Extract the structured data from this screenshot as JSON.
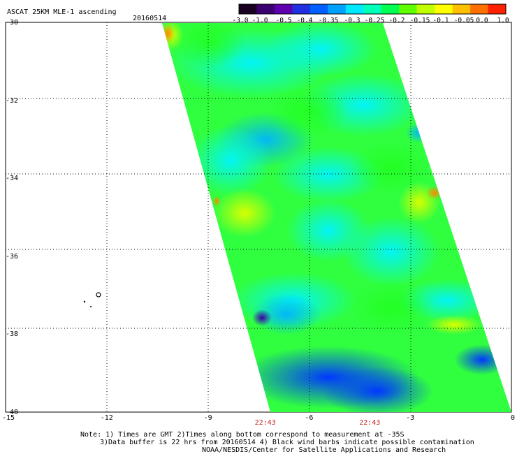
{
  "header": {
    "title": "ASCAT 25KM MLE-1 ascending",
    "date": "20160514"
  },
  "colorbar": {
    "labels": [
      "-3.0",
      "-1.0",
      "-0.5",
      "-0.4",
      "-0.35",
      "-0.3",
      "-0.25",
      "-0.2",
      "-0.15",
      "-0.1",
      "-0.05",
      "0.0",
      "1.0"
    ],
    "colors": [
      "#1a0020",
      "#3a0070",
      "#5c00b0",
      "#2030e0",
      "#0060ff",
      "#00a0ff",
      "#00e8ff",
      "#00ffb8",
      "#00ff50",
      "#60ff00",
      "#c0ff00",
      "#ffff00",
      "#ffc000",
      "#ff7000",
      "#ff2000"
    ]
  },
  "axes": {
    "lat_labels": [
      "-30",
      "-32",
      "-34",
      "-36",
      "-38",
      "-40"
    ],
    "lat_values": [
      -30,
      -32,
      -34,
      -36,
      -38,
      -40
    ],
    "lon_labels": [
      "-15",
      "-12",
      "-9",
      "-6",
      "-3",
      "0"
    ],
    "lon_values": [
      -15,
      -12,
      -9,
      -6,
      -3,
      0
    ],
    "lat_range": [
      -40,
      -30
    ],
    "lon_range": [
      -15,
      0
    ],
    "grid": "dotted"
  },
  "times": [
    {
      "label": "22:43",
      "lon": -7.3
    },
    {
      "label": "22:43",
      "lon": -4.2
    }
  ],
  "footer": {
    "line1": "Note: 1) Times are GMT 2)Times along bottom correspond to measurement at -35S",
    "line2": "3)Data buffer is 22 hrs from 20160514 4) Black wind barbs indicate possible contamination",
    "line3": "NOAA/NESDIS/Center for Satellite Applications and Research"
  }
}
